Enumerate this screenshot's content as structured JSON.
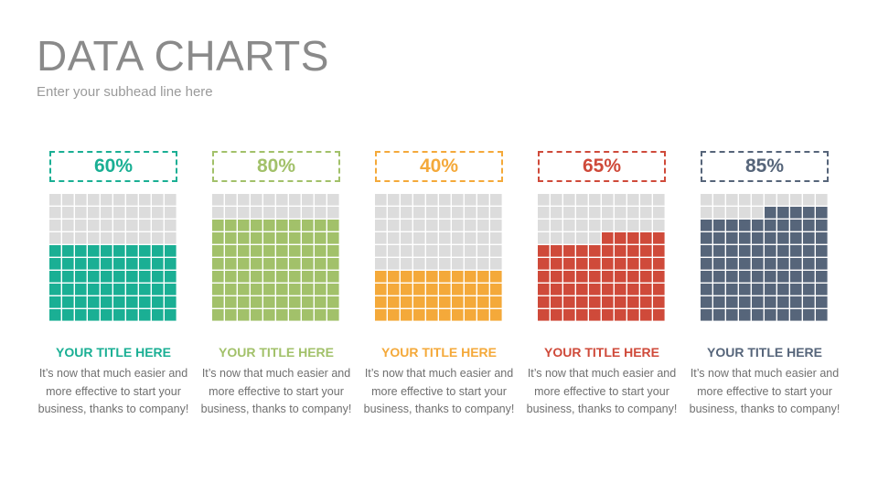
{
  "header": {
    "title": "DATA CHARTS",
    "subtitle": "Enter your subhead line here"
  },
  "cards": [
    {
      "percent_label": "60%",
      "title": "YOUR TITLE HERE",
      "description": "It’s now that much easier and more effective to start your business, thanks to company!",
      "color": "#1aaf94"
    },
    {
      "percent_label": "80%",
      "title": "YOUR TITLE HERE",
      "description": "It’s now that much easier and more effective to start your business, thanks to company!",
      "color": "#a2c16a"
    },
    {
      "percent_label": "40%",
      "title": "YOUR TITLE HERE",
      "description": "It’s now that much easier and more effective to start your business, thanks to company!",
      "color": "#f4a93a"
    },
    {
      "percent_label": "65%",
      "title": "YOUR TITLE HERE",
      "description": "It’s now that much easier and more effective to start your business, thanks to company!",
      "color": "#cf4a3a"
    },
    {
      "percent_label": "85%",
      "title": "YOUR TITLE HERE",
      "description": "It’s now that much easier and more effective to start your business, thanks to company!",
      "color": "#56657a"
    }
  ],
  "chart_data": {
    "type": "waffle",
    "grid": {
      "rows": 10,
      "cols": 10
    },
    "values": [
      60,
      80,
      40,
      65,
      85
    ],
    "unit": "%",
    "empty_color": "#dcdcdc"
  }
}
